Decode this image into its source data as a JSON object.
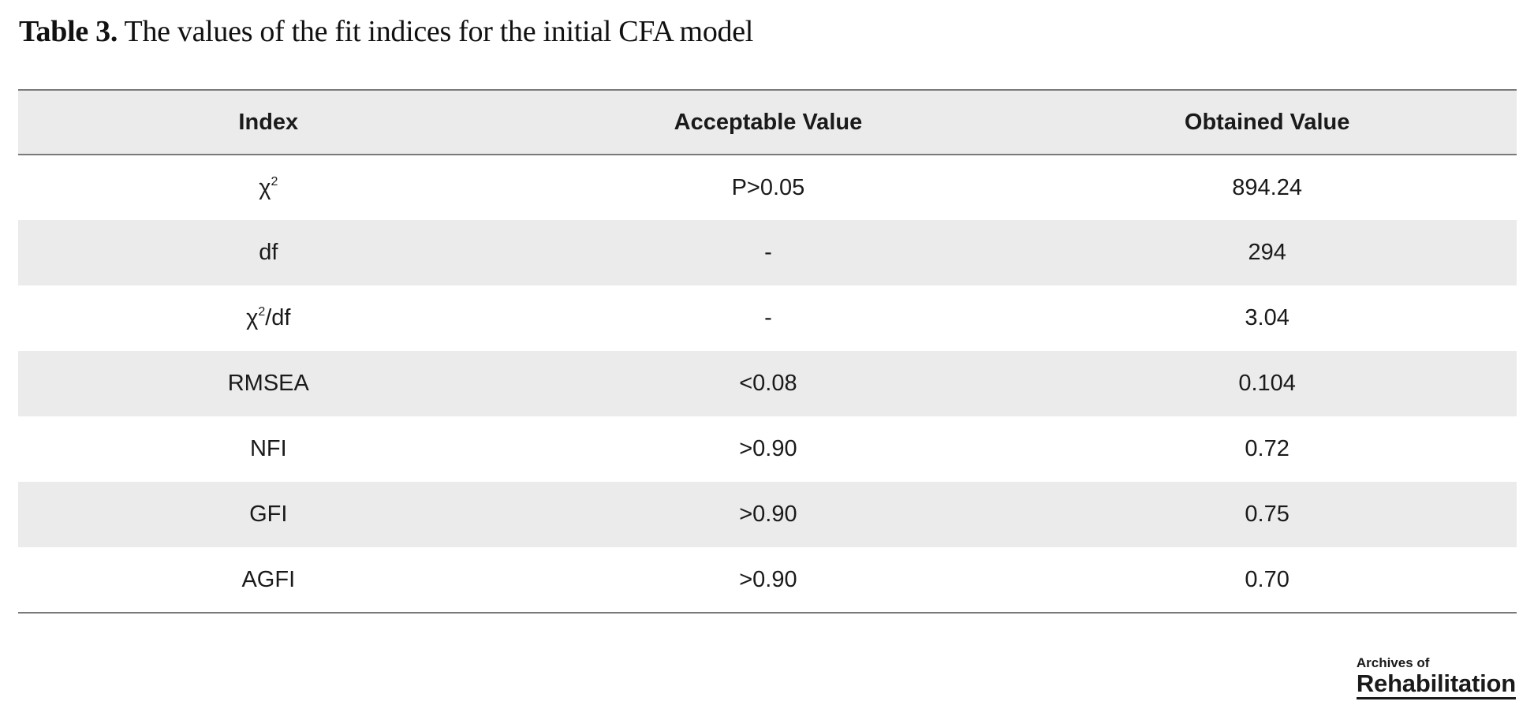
{
  "caption": {
    "label": "Table 3.",
    "text": " The values of the fit indices for the initial CFA model"
  },
  "table": {
    "headers": [
      "Index",
      "Acceptable Value",
      "Obtained Value"
    ],
    "rows": [
      {
        "index": "χ",
        "index_sup": "2",
        "index_suffix": "",
        "acceptable": "P>0.05",
        "obtained": "894.24"
      },
      {
        "index": "df",
        "acceptable": "-",
        "obtained": "294"
      },
      {
        "index": "χ",
        "index_sup": "2",
        "index_suffix": "/df",
        "acceptable": "-",
        "obtained": "3.04"
      },
      {
        "index": "RMSEA",
        "acceptable": "<0.08",
        "obtained": "0.104"
      },
      {
        "index": "NFI",
        "acceptable": ">0.90",
        "obtained": "0.72"
      },
      {
        "index": "GFI",
        "acceptable": ">0.90",
        "obtained": "0.75"
      },
      {
        "index": "AGFI",
        "acceptable": ">0.90",
        "obtained": "0.70"
      }
    ]
  },
  "logo": {
    "small": "Archives of",
    "big": "Rehabilitation"
  }
}
